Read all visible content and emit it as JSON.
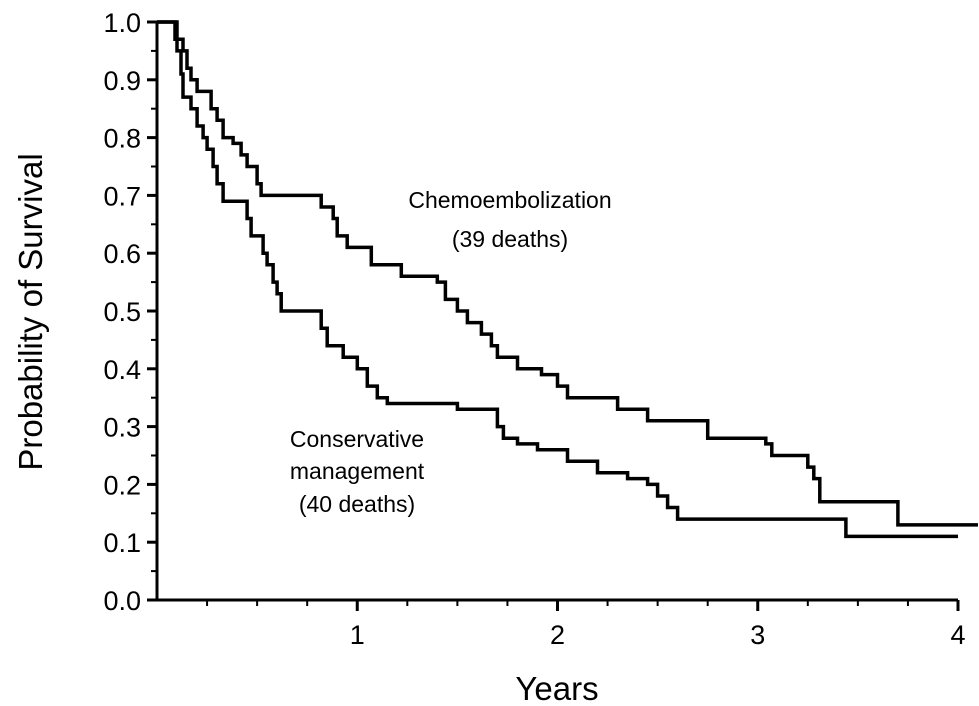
{
  "chart_data": {
    "type": "line",
    "step": true,
    "xlabel": "Years",
    "ylabel": "Probability of Survival",
    "xlim": [
      0,
      4
    ],
    "ylim": [
      0,
      1
    ],
    "x_ticks": [
      {
        "value": 1,
        "label": "1"
      },
      {
        "value": 2,
        "label": "2"
      },
      {
        "value": 3,
        "label": "3"
      },
      {
        "value": 4,
        "label": "4"
      }
    ],
    "y_ticks": [
      {
        "value": 0.0,
        "label": "0.0"
      },
      {
        "value": 0.1,
        "label": "0.1"
      },
      {
        "value": 0.2,
        "label": "0.2"
      },
      {
        "value": 0.3,
        "label": "0.3"
      },
      {
        "value": 0.4,
        "label": "0.4"
      },
      {
        "value": 0.5,
        "label": "0.5"
      },
      {
        "value": 0.6,
        "label": "0.6"
      },
      {
        "value": 0.7,
        "label": "0.7"
      },
      {
        "value": 0.8,
        "label": "0.8"
      },
      {
        "value": 0.9,
        "label": "0.9"
      },
      {
        "value": 1.0,
        "label": "1.0"
      }
    ],
    "grid": false,
    "series": [
      {
        "name": "Chemoembolization",
        "color": "#000000",
        "points": [
          [
            0,
            1.0
          ],
          [
            0.09,
            0.97
          ],
          [
            0.13,
            0.95
          ],
          [
            0.15,
            0.92
          ],
          [
            0.17,
            0.9
          ],
          [
            0.2,
            0.88
          ],
          [
            0.27,
            0.85
          ],
          [
            0.3,
            0.83
          ],
          [
            0.33,
            0.8
          ],
          [
            0.38,
            0.79
          ],
          [
            0.42,
            0.77
          ],
          [
            0.45,
            0.75
          ],
          [
            0.5,
            0.72
          ],
          [
            0.52,
            0.7
          ],
          [
            0.82,
            0.68
          ],
          [
            0.88,
            0.66
          ],
          [
            0.9,
            0.63
          ],
          [
            0.95,
            0.61
          ],
          [
            1.07,
            0.58
          ],
          [
            1.22,
            0.56
          ],
          [
            1.4,
            0.55
          ],
          [
            1.44,
            0.52
          ],
          [
            1.5,
            0.5
          ],
          [
            1.55,
            0.48
          ],
          [
            1.62,
            0.46
          ],
          [
            1.67,
            0.44
          ],
          [
            1.7,
            0.42
          ],
          [
            1.8,
            0.4
          ],
          [
            1.92,
            0.39
          ],
          [
            2.0,
            0.37
          ],
          [
            2.05,
            0.35
          ],
          [
            2.3,
            0.33
          ],
          [
            2.45,
            0.31
          ],
          [
            2.75,
            0.28
          ],
          [
            3.04,
            0.27
          ],
          [
            3.07,
            0.25
          ],
          [
            3.25,
            0.23
          ],
          [
            3.28,
            0.21
          ],
          [
            3.31,
            0.17
          ],
          [
            3.7,
            0.13
          ],
          [
            4.1,
            0.13
          ]
        ]
      },
      {
        "name": "Conservative management",
        "color": "#000000",
        "points": [
          [
            0,
            1.0
          ],
          [
            0.1,
            0.95
          ],
          [
            0.12,
            0.91
          ],
          [
            0.13,
            0.87
          ],
          [
            0.17,
            0.85
          ],
          [
            0.2,
            0.82
          ],
          [
            0.23,
            0.8
          ],
          [
            0.25,
            0.78
          ],
          [
            0.28,
            0.75
          ],
          [
            0.3,
            0.72
          ],
          [
            0.33,
            0.69
          ],
          [
            0.45,
            0.66
          ],
          [
            0.47,
            0.63
          ],
          [
            0.53,
            0.6
          ],
          [
            0.55,
            0.58
          ],
          [
            0.58,
            0.55
          ],
          [
            0.6,
            0.53
          ],
          [
            0.62,
            0.5
          ],
          [
            0.82,
            0.47
          ],
          [
            0.85,
            0.44
          ],
          [
            0.93,
            0.42
          ],
          [
            1.0,
            0.4
          ],
          [
            1.05,
            0.37
          ],
          [
            1.1,
            0.35
          ],
          [
            1.15,
            0.34
          ],
          [
            1.5,
            0.33
          ],
          [
            1.7,
            0.3
          ],
          [
            1.73,
            0.28
          ],
          [
            1.8,
            0.27
          ],
          [
            1.9,
            0.26
          ],
          [
            2.05,
            0.24
          ],
          [
            2.2,
            0.22
          ],
          [
            2.35,
            0.21
          ],
          [
            2.45,
            0.2
          ],
          [
            2.5,
            0.18
          ],
          [
            2.55,
            0.16
          ],
          [
            2.6,
            0.14
          ],
          [
            3.44,
            0.11
          ],
          [
            4.0,
            0.11
          ]
        ]
      }
    ],
    "annotations": [
      {
        "lines": [
          "Chemoembolization",
          "(39 deaths)"
        ]
      },
      {
        "lines": [
          "Conservative",
          "management",
          "(40 deaths)"
        ]
      }
    ]
  }
}
